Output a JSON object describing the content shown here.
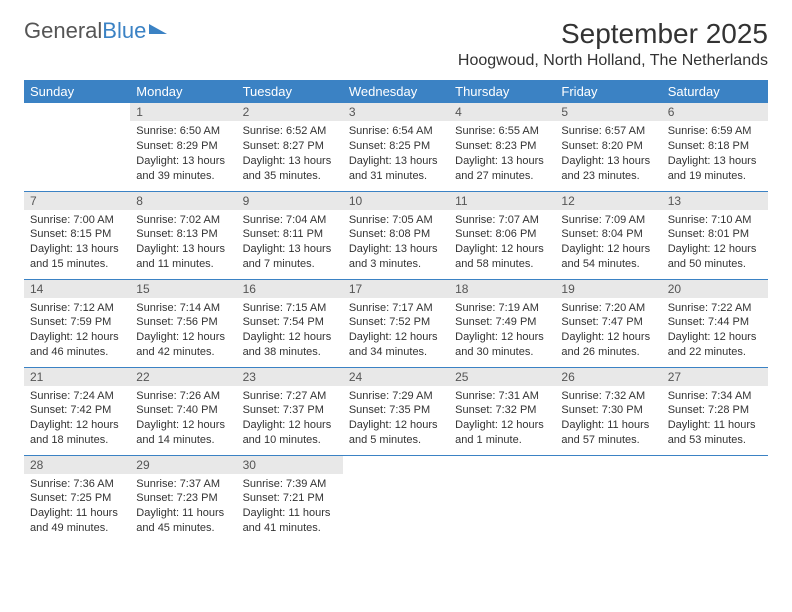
{
  "logo": {
    "text1": "General",
    "text2": "Blue"
  },
  "title": "September 2025",
  "location": "Hoogwoud, North Holland, The Netherlands",
  "colors": {
    "header_bg": "#3b82c4",
    "header_text": "#ffffff",
    "daynum_bg": "#e8e8e8",
    "body_text": "#333333",
    "rule": "#3b82c4",
    "page_bg": "#ffffff"
  },
  "typography": {
    "title_fontsize": 28,
    "location_fontsize": 16,
    "header_fontsize": 13,
    "cell_fontsize": 11
  },
  "weekdays": [
    "Sunday",
    "Monday",
    "Tuesday",
    "Wednesday",
    "Thursday",
    "Friday",
    "Saturday"
  ],
  "weeks": [
    [
      null,
      {
        "n": "1",
        "sr": "Sunrise: 6:50 AM",
        "ss": "Sunset: 8:29 PM",
        "dl": "Daylight: 13 hours and 39 minutes."
      },
      {
        "n": "2",
        "sr": "Sunrise: 6:52 AM",
        "ss": "Sunset: 8:27 PM",
        "dl": "Daylight: 13 hours and 35 minutes."
      },
      {
        "n": "3",
        "sr": "Sunrise: 6:54 AM",
        "ss": "Sunset: 8:25 PM",
        "dl": "Daylight: 13 hours and 31 minutes."
      },
      {
        "n": "4",
        "sr": "Sunrise: 6:55 AM",
        "ss": "Sunset: 8:23 PM",
        "dl": "Daylight: 13 hours and 27 minutes."
      },
      {
        "n": "5",
        "sr": "Sunrise: 6:57 AM",
        "ss": "Sunset: 8:20 PM",
        "dl": "Daylight: 13 hours and 23 minutes."
      },
      {
        "n": "6",
        "sr": "Sunrise: 6:59 AM",
        "ss": "Sunset: 8:18 PM",
        "dl": "Daylight: 13 hours and 19 minutes."
      }
    ],
    [
      {
        "n": "7",
        "sr": "Sunrise: 7:00 AM",
        "ss": "Sunset: 8:15 PM",
        "dl": "Daylight: 13 hours and 15 minutes."
      },
      {
        "n": "8",
        "sr": "Sunrise: 7:02 AM",
        "ss": "Sunset: 8:13 PM",
        "dl": "Daylight: 13 hours and 11 minutes."
      },
      {
        "n": "9",
        "sr": "Sunrise: 7:04 AM",
        "ss": "Sunset: 8:11 PM",
        "dl": "Daylight: 13 hours and 7 minutes."
      },
      {
        "n": "10",
        "sr": "Sunrise: 7:05 AM",
        "ss": "Sunset: 8:08 PM",
        "dl": "Daylight: 13 hours and 3 minutes."
      },
      {
        "n": "11",
        "sr": "Sunrise: 7:07 AM",
        "ss": "Sunset: 8:06 PM",
        "dl": "Daylight: 12 hours and 58 minutes."
      },
      {
        "n": "12",
        "sr": "Sunrise: 7:09 AM",
        "ss": "Sunset: 8:04 PM",
        "dl": "Daylight: 12 hours and 54 minutes."
      },
      {
        "n": "13",
        "sr": "Sunrise: 7:10 AM",
        "ss": "Sunset: 8:01 PM",
        "dl": "Daylight: 12 hours and 50 minutes."
      }
    ],
    [
      {
        "n": "14",
        "sr": "Sunrise: 7:12 AM",
        "ss": "Sunset: 7:59 PM",
        "dl": "Daylight: 12 hours and 46 minutes."
      },
      {
        "n": "15",
        "sr": "Sunrise: 7:14 AM",
        "ss": "Sunset: 7:56 PM",
        "dl": "Daylight: 12 hours and 42 minutes."
      },
      {
        "n": "16",
        "sr": "Sunrise: 7:15 AM",
        "ss": "Sunset: 7:54 PM",
        "dl": "Daylight: 12 hours and 38 minutes."
      },
      {
        "n": "17",
        "sr": "Sunrise: 7:17 AM",
        "ss": "Sunset: 7:52 PM",
        "dl": "Daylight: 12 hours and 34 minutes."
      },
      {
        "n": "18",
        "sr": "Sunrise: 7:19 AM",
        "ss": "Sunset: 7:49 PM",
        "dl": "Daylight: 12 hours and 30 minutes."
      },
      {
        "n": "19",
        "sr": "Sunrise: 7:20 AM",
        "ss": "Sunset: 7:47 PM",
        "dl": "Daylight: 12 hours and 26 minutes."
      },
      {
        "n": "20",
        "sr": "Sunrise: 7:22 AM",
        "ss": "Sunset: 7:44 PM",
        "dl": "Daylight: 12 hours and 22 minutes."
      }
    ],
    [
      {
        "n": "21",
        "sr": "Sunrise: 7:24 AM",
        "ss": "Sunset: 7:42 PM",
        "dl": "Daylight: 12 hours and 18 minutes."
      },
      {
        "n": "22",
        "sr": "Sunrise: 7:26 AM",
        "ss": "Sunset: 7:40 PM",
        "dl": "Daylight: 12 hours and 14 minutes."
      },
      {
        "n": "23",
        "sr": "Sunrise: 7:27 AM",
        "ss": "Sunset: 7:37 PM",
        "dl": "Daylight: 12 hours and 10 minutes."
      },
      {
        "n": "24",
        "sr": "Sunrise: 7:29 AM",
        "ss": "Sunset: 7:35 PM",
        "dl": "Daylight: 12 hours and 5 minutes."
      },
      {
        "n": "25",
        "sr": "Sunrise: 7:31 AM",
        "ss": "Sunset: 7:32 PM",
        "dl": "Daylight: 12 hours and 1 minute."
      },
      {
        "n": "26",
        "sr": "Sunrise: 7:32 AM",
        "ss": "Sunset: 7:30 PM",
        "dl": "Daylight: 11 hours and 57 minutes."
      },
      {
        "n": "27",
        "sr": "Sunrise: 7:34 AM",
        "ss": "Sunset: 7:28 PM",
        "dl": "Daylight: 11 hours and 53 minutes."
      }
    ],
    [
      {
        "n": "28",
        "sr": "Sunrise: 7:36 AM",
        "ss": "Sunset: 7:25 PM",
        "dl": "Daylight: 11 hours and 49 minutes."
      },
      {
        "n": "29",
        "sr": "Sunrise: 7:37 AM",
        "ss": "Sunset: 7:23 PM",
        "dl": "Daylight: 11 hours and 45 minutes."
      },
      {
        "n": "30",
        "sr": "Sunrise: 7:39 AM",
        "ss": "Sunset: 7:21 PM",
        "dl": "Daylight: 11 hours and 41 minutes."
      },
      null,
      null,
      null,
      null
    ]
  ]
}
